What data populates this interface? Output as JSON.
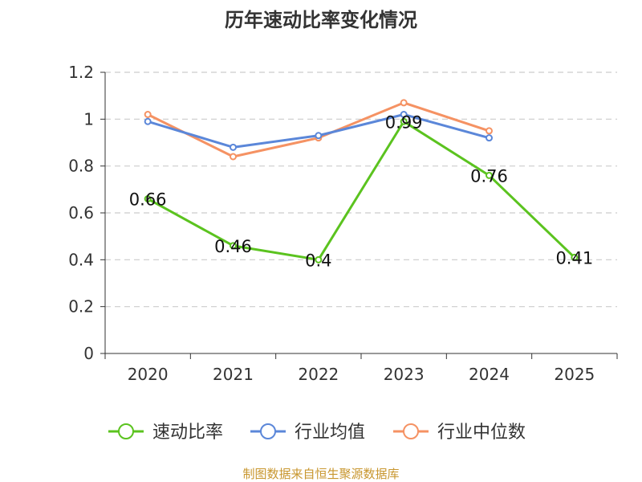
{
  "chart_data": {
    "type": "line",
    "title": "历年速动比率变化情况",
    "categories": [
      "2020",
      "2021",
      "2022",
      "2023",
      "2024",
      "2025"
    ],
    "yticks": [
      "0",
      "0.2",
      "0.4",
      "0.6",
      "0.8",
      "1",
      "1.2"
    ],
    "ylim": [
      0,
      1.2
    ],
    "grid": true,
    "legend_position": "bottom",
    "series": [
      {
        "name": "速动比率",
        "color": "#5bc31f",
        "values": [
          0.66,
          0.46,
          0.4,
          0.99,
          0.76,
          0.41
        ],
        "labels": [
          "0.66",
          "0.46",
          "0.4",
          "0.99",
          "0.76",
          "0.41"
        ]
      },
      {
        "name": "行业均值",
        "color": "#5b87d9",
        "values": [
          0.99,
          0.88,
          0.93,
          1.02,
          0.92,
          null
        ]
      },
      {
        "name": "行业中位数",
        "color": "#f59263",
        "values": [
          1.02,
          0.84,
          0.92,
          1.07,
          0.95,
          null
        ]
      }
    ],
    "source": "制图数据来自恒生聚源数据库"
  }
}
